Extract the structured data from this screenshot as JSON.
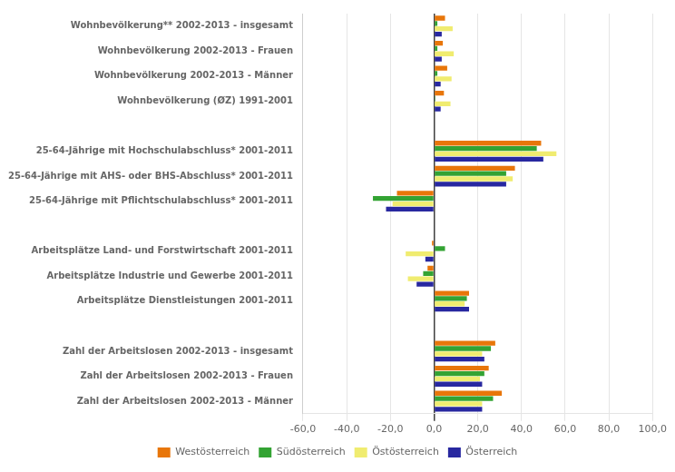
{
  "chart_data": {
    "type": "bar",
    "orientation": "horizontal",
    "categories": [
      "Wohnbevölkerung** 2002-2013 - insgesamt",
      "Wohnbevölkerung 2002-2013 - Frauen",
      "Wohnbevölkerung 2002-2013 - Männer",
      "Wohnbevölkerung (ØZ) 1991-2001",
      null,
      "25-64-Jährige mit Hochschulabschluss* 2001-2011",
      "25-64-Jährige mit AHS- oder BHS-Abschluss* 2001-2011",
      "25-64-Jährige mit Pflichtschulabschluss* 2001-2011",
      null,
      "Arbeitsplätze Land- und Forstwirtschaft 2001-2011",
      "Arbeitsplätze Industrie und Gewerbe 2001-2011",
      "Arbeitsplätze Dienstleistungen 2001-2011",
      null,
      "Zahl der Arbeitslosen 2002-2013 - insgesamt",
      "Zahl der Arbeitslosen 2002-2013 - Frauen",
      "Zahl der Arbeitslosen 2002-2013 - Männer"
    ],
    "series": [
      {
        "name": "Westösterreich",
        "color": "#E8760A",
        "values": [
          5.0,
          4.0,
          6.0,
          4.5,
          null,
          49.0,
          37.0,
          -17.0,
          null,
          -1.0,
          -3.0,
          16.0,
          null,
          28.0,
          25.0,
          31.0
        ]
      },
      {
        "name": "Südösterreich",
        "color": "#33A333",
        "values": [
          1.5,
          1.5,
          1.5,
          0.5,
          null,
          47.0,
          33.0,
          -28.0,
          null,
          5.0,
          -5.0,
          15.0,
          null,
          26.0,
          23.0,
          27.0
        ]
      },
      {
        "name": "Östösterreich",
        "color": "#F0EC70",
        "values": [
          8.5,
          9.0,
          8.0,
          7.5,
          null,
          56.0,
          36.0,
          -19.0,
          null,
          -13.0,
          -12.0,
          14.0,
          null,
          22.0,
          21.0,
          22.0
        ]
      },
      {
        "name": "Österreich",
        "color": "#2828A0",
        "values": [
          3.5,
          3.5,
          3.0,
          3.0,
          null,
          50.0,
          33.0,
          -22.0,
          null,
          -4.0,
          -8.0,
          16.0,
          null,
          23.0,
          22.0,
          22.0
        ]
      }
    ],
    "xlim": [
      -60,
      100
    ],
    "xticks": [
      {
        "value": -60,
        "label": "-60,0"
      },
      {
        "value": -40,
        "label": "-40,0"
      },
      {
        "value": -20,
        "label": "-20,0"
      },
      {
        "value": 0,
        "label": "0,0"
      },
      {
        "value": 20,
        "label": "20,0"
      },
      {
        "value": 40,
        "label": "40,0"
      },
      {
        "value": 60,
        "label": "60,0"
      },
      {
        "value": 80,
        "label": "80,0"
      },
      {
        "value": 100,
        "label": "100,0"
      }
    ],
    "grid": "x",
    "legend": "bottom"
  }
}
